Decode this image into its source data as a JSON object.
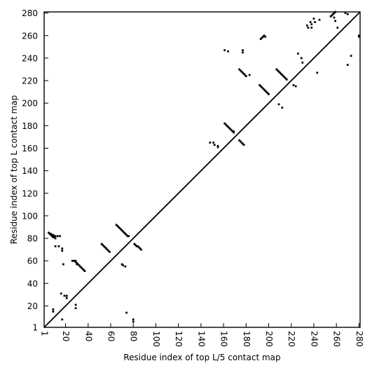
{
  "chart_data": {
    "type": "scatter",
    "title": "",
    "xlabel": "Residue index of top L/5 contact map",
    "ylabel": "Residue index of top L contact map",
    "xlim": [
      1,
      281
    ],
    "ylim": [
      1,
      281
    ],
    "x_ticks": [
      1,
      20,
      40,
      60,
      80,
      100,
      120,
      140,
      160,
      180,
      200,
      220,
      240,
      260,
      280
    ],
    "y_ticks": [
      1,
      20,
      40,
      60,
      80,
      100,
      120,
      140,
      160,
      180,
      200,
      220,
      240,
      260,
      280
    ],
    "grid": false,
    "legend": "none",
    "diagonal": {
      "from": [
        1,
        1
      ],
      "to": [
        281,
        281
      ],
      "color": "#000000"
    },
    "series": [
      {
        "marker_color": "#000000",
        "marker": "square",
        "points": [
          [
            5,
            85
          ],
          [
            6,
            84
          ],
          [
            7,
            84
          ],
          [
            7,
            83
          ],
          [
            8,
            83
          ],
          [
            8,
            82
          ],
          [
            9,
            83
          ],
          [
            9,
            81
          ],
          [
            10,
            82
          ],
          [
            10,
            81
          ],
          [
            11,
            80
          ],
          [
            11,
            82
          ],
          [
            13,
            82
          ],
          [
            15,
            82
          ],
          [
            11,
            73
          ],
          [
            14,
            73
          ],
          [
            17,
            71
          ],
          [
            17,
            69
          ],
          [
            18,
            57
          ],
          [
            26,
            60
          ],
          [
            27,
            60
          ],
          [
            28,
            60
          ],
          [
            29,
            60
          ],
          [
            29,
            59
          ],
          [
            30,
            58
          ],
          [
            30,
            57
          ],
          [
            31,
            57
          ],
          [
            32,
            56
          ],
          [
            33,
            55
          ],
          [
            34,
            54
          ],
          [
            35,
            53
          ],
          [
            36,
            52
          ],
          [
            37,
            51
          ],
          [
            52,
            75
          ],
          [
            53,
            74
          ],
          [
            54,
            73
          ],
          [
            55,
            72
          ],
          [
            56,
            71
          ],
          [
            57,
            70
          ],
          [
            58,
            69
          ],
          [
            59,
            68
          ],
          [
            65,
            92
          ],
          [
            66,
            91
          ],
          [
            67,
            90
          ],
          [
            68,
            89
          ],
          [
            69,
            88
          ],
          [
            70,
            87
          ],
          [
            71,
            86
          ],
          [
            72,
            85
          ],
          [
            73,
            84
          ],
          [
            74,
            83
          ],
          [
            75,
            82
          ],
          [
            76,
            82
          ],
          [
            70,
            57
          ],
          [
            71,
            56
          ],
          [
            73,
            55
          ],
          [
            81,
            75
          ],
          [
            82,
            74
          ],
          [
            83,
            73
          ],
          [
            84,
            73
          ],
          [
            85,
            72
          ],
          [
            86,
            71
          ],
          [
            87,
            70
          ],
          [
            9,
            17
          ],
          [
            9,
            15
          ],
          [
            16,
            31
          ],
          [
            19,
            29
          ],
          [
            21,
            29
          ],
          [
            21,
            27
          ],
          [
            17,
            8
          ],
          [
            29,
            21
          ],
          [
            29,
            18
          ],
          [
            74,
            14
          ],
          [
            80,
            8
          ],
          [
            80,
            6
          ],
          [
            148,
            165
          ],
          [
            151,
            165
          ],
          [
            152,
            163
          ],
          [
            155,
            162
          ],
          [
            155,
            161
          ],
          [
            161,
            182
          ],
          [
            162,
            181
          ],
          [
            163,
            180
          ],
          [
            164,
            179
          ],
          [
            165,
            178
          ],
          [
            166,
            177
          ],
          [
            167,
            176
          ],
          [
            168,
            175
          ],
          [
            169,
            175
          ],
          [
            169,
            174
          ],
          [
            174,
            167
          ],
          [
            175,
            166
          ],
          [
            176,
            165
          ],
          [
            177,
            164
          ],
          [
            178,
            163
          ],
          [
            161,
            247
          ],
          [
            164,
            246
          ],
          [
            177,
            247
          ],
          [
            177,
            245
          ],
          [
            174,
            230
          ],
          [
            175,
            229
          ],
          [
            176,
            228
          ],
          [
            177,
            227
          ],
          [
            178,
            226
          ],
          [
            179,
            225
          ],
          [
            180,
            224
          ],
          [
            183,
            225
          ],
          [
            192,
            216
          ],
          [
            193,
            215
          ],
          [
            194,
            214
          ],
          [
            195,
            213
          ],
          [
            196,
            212
          ],
          [
            197,
            211
          ],
          [
            198,
            210
          ],
          [
            199,
            209
          ],
          [
            200,
            208
          ],
          [
            193,
            257
          ],
          [
            194,
            258
          ],
          [
            195,
            259
          ],
          [
            196,
            260
          ],
          [
            197,
            259
          ],
          [
            207,
            230
          ],
          [
            208,
            229
          ],
          [
            209,
            228
          ],
          [
            210,
            227
          ],
          [
            211,
            226
          ],
          [
            212,
            225
          ],
          [
            213,
            224
          ],
          [
            214,
            223
          ],
          [
            215,
            222
          ],
          [
            216,
            221
          ],
          [
            209,
            199
          ],
          [
            212,
            196
          ],
          [
            222,
            216
          ],
          [
            224,
            215
          ],
          [
            226,
            244
          ],
          [
            229,
            240
          ],
          [
            230,
            236
          ],
          [
            234,
            269
          ],
          [
            235,
            267
          ],
          [
            237,
            272
          ],
          [
            238,
            270
          ],
          [
            238,
            267
          ],
          [
            240,
            275
          ],
          [
            241,
            272
          ],
          [
            243,
            227
          ],
          [
            245,
            274
          ],
          [
            255,
            277
          ],
          [
            256,
            278
          ],
          [
            257,
            279
          ],
          [
            258,
            280
          ],
          [
            258,
            276
          ],
          [
            259,
            281
          ],
          [
            259,
            273
          ],
          [
            261,
            267
          ],
          [
            268,
            280
          ],
          [
            270,
            279
          ],
          [
            270,
            234
          ],
          [
            273,
            242
          ],
          [
            280,
            260
          ],
          [
            280,
            259
          ]
        ]
      }
    ]
  }
}
